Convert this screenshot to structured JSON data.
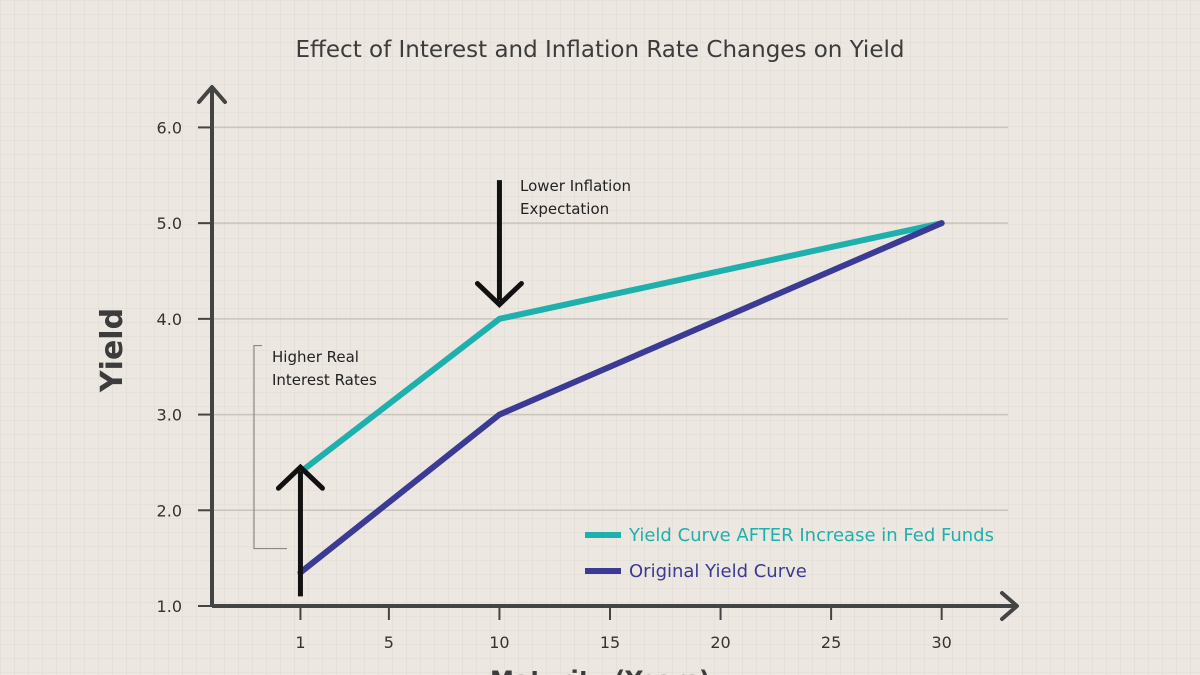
{
  "chart_data": {
    "type": "line",
    "title": "Effect of Interest and Inflation Rate Changes on Yield",
    "xlabel": "Maturity (Years)",
    "ylabel": "Yield",
    "xlim": [
      -3,
      33
    ],
    "ylim": [
      1.0,
      6.6
    ],
    "x_ticks": [
      1,
      5,
      10,
      15,
      20,
      25,
      30
    ],
    "y_ticks": [
      1.0,
      2.0,
      3.0,
      4.0,
      5.0,
      6.0
    ],
    "y_tick_labels": [
      "1.0",
      "2.0",
      "3.0",
      "4.0",
      "5.0",
      "6.0"
    ],
    "grid": "horizontal",
    "legend_position": "bottom-right",
    "series": [
      {
        "name": "Yield Curve AFTER Increase in Fed Funds",
        "color": "#1eb0ad",
        "x": [
          1,
          10,
          30
        ],
        "y": [
          2.4,
          4.0,
          5.0
        ]
      },
      {
        "name": "Original Yield Curve",
        "color": "#3b3a94",
        "x": [
          1,
          10,
          30
        ],
        "y": [
          1.35,
          3.0,
          5.0
        ]
      }
    ],
    "annotations": [
      {
        "lines": [
          "Higher Real",
          "Interest Rates"
        ],
        "arrow": "up",
        "x": 1,
        "from_y": 1.1,
        "to_y": 2.45,
        "bracket_y": [
          1.6,
          3.7
        ]
      },
      {
        "lines": [
          "Lower Inflation",
          "Expectation"
        ],
        "arrow": "down",
        "x": 10,
        "from_y": 5.45,
        "to_y": 4.15
      }
    ]
  }
}
